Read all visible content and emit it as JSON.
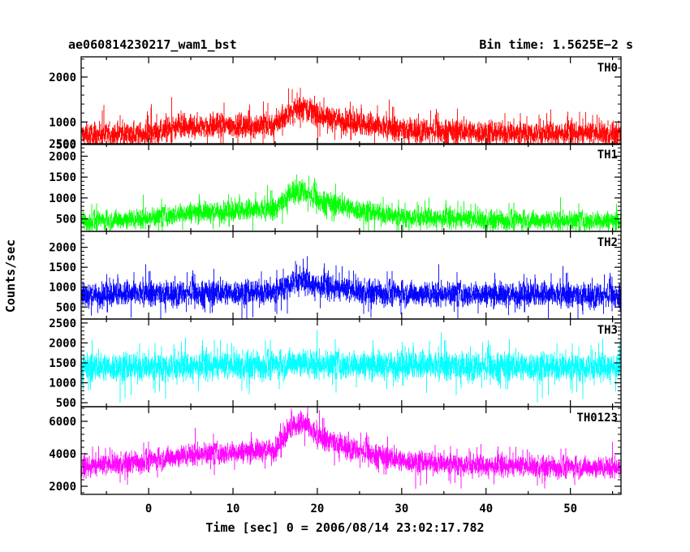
{
  "header": {
    "left": "ae060814230217_wam1_bst",
    "right": "Bin time: 1.5625E−2 s"
  },
  "xlabel": "Time [sec] 0 = 2006/08/14 23:02:17.782",
  "ylabel": "Counts/sec",
  "chart_data": {
    "type": "line",
    "title": "ae060814230217_wam1_bst",
    "xlabel": "Time [sec] 0 = 2006/08/14 23:02:17.782",
    "ylabel": "Counts/sec",
    "xlim": [
      -8,
      56
    ],
    "x_ticks": [
      0,
      10,
      20,
      30,
      40,
      50
    ],
    "bin_time_s": 0.015625,
    "panels": [
      {
        "name": "TH0",
        "color": "#ff0000",
        "ylim": [
          500,
          2450
        ],
        "y_ticks": [
          1000,
          2000
        ],
        "y_tick_labels": [
          "1000",
          "2000"
        ],
        "bottom_edge_label": "500",
        "profile": [
          [
            -8,
            760
          ],
          [
            0,
            780
          ],
          [
            3,
            900
          ],
          [
            8,
            980
          ],
          [
            12,
            960
          ],
          [
            15,
            1000
          ],
          [
            17,
            1300
          ],
          [
            18.5,
            1400
          ],
          [
            20,
            1200
          ],
          [
            25,
            1000
          ],
          [
            30,
            880
          ],
          [
            40,
            820
          ],
          [
            50,
            800
          ],
          [
            56,
            790
          ]
        ],
        "spread": 280
      },
      {
        "name": "TH1",
        "color": "#00ff00",
        "ylim": [
          200,
          2300
        ],
        "y_ticks": [
          500,
          1000,
          1500,
          2000
        ],
        "y_tick_labels": [
          "500",
          "1000",
          "1500",
          "2000"
        ],
        "top_edge_label": "2500",
        "profile": [
          [
            -8,
            480
          ],
          [
            0,
            560
          ],
          [
            5,
            700
          ],
          [
            10,
            720
          ],
          [
            15,
            780
          ],
          [
            17,
            1200
          ],
          [
            18,
            1250
          ],
          [
            20,
            1000
          ],
          [
            25,
            750
          ],
          [
            30,
            600
          ],
          [
            40,
            520
          ],
          [
            50,
            500
          ],
          [
            56,
            490
          ]
        ],
        "spread": 250
      },
      {
        "name": "TH2",
        "color": "#0000ff",
        "ylim": [
          200,
          2400
        ],
        "y_ticks": [
          500,
          1000,
          1500,
          2000
        ],
        "y_tick_labels": [
          "500",
          "1000",
          "1500",
          "2000"
        ],
        "profile": [
          [
            -8,
            850
          ],
          [
            0,
            900
          ],
          [
            10,
            920
          ],
          [
            15,
            950
          ],
          [
            17,
            1200
          ],
          [
            18,
            1250
          ],
          [
            20,
            1100
          ],
          [
            25,
            950
          ],
          [
            30,
            900
          ],
          [
            40,
            880
          ],
          [
            50,
            860
          ],
          [
            56,
            850
          ]
        ],
        "spread": 330
      },
      {
        "name": "TH3",
        "color": "#00ffff",
        "ylim": [
          400,
          2600
        ],
        "y_ticks": [
          500,
          1000,
          1500,
          2000,
          2500
        ],
        "y_tick_labels": [
          "500",
          "1000",
          "1500",
          "2000",
          "2500"
        ],
        "profile": [
          [
            -8,
            1450
          ],
          [
            0,
            1480
          ],
          [
            10,
            1500
          ],
          [
            16,
            1520
          ],
          [
            17.5,
            1600
          ],
          [
            20,
            1530
          ],
          [
            30,
            1500
          ],
          [
            40,
            1480
          ],
          [
            56,
            1470
          ]
        ],
        "spread": 380
      },
      {
        "name": "TH0123",
        "color": "#ff00ff",
        "ylim": [
          1500,
          6900
        ],
        "y_ticks": [
          2000,
          4000,
          6000
        ],
        "y_tick_labels": [
          "2000",
          "4000",
          "6000"
        ],
        "profile": [
          [
            -8,
            3300
          ],
          [
            0,
            3700
          ],
          [
            5,
            4100
          ],
          [
            10,
            4200
          ],
          [
            15,
            4400
          ],
          [
            17,
            5800
          ],
          [
            18.5,
            6000
          ],
          [
            20,
            5200
          ],
          [
            25,
            4300
          ],
          [
            30,
            3700
          ],
          [
            40,
            3400
          ],
          [
            50,
            3300
          ],
          [
            56,
            3300
          ]
        ],
        "spread": 700
      }
    ]
  }
}
